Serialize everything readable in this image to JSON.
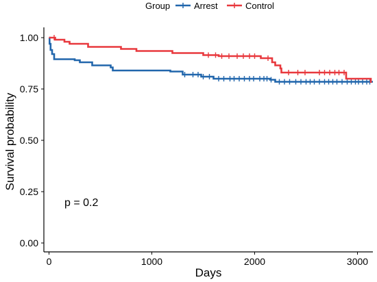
{
  "chart_data": {
    "type": "line",
    "subtype": "kaplan-meier step",
    "title": "",
    "xlabel": "Days",
    "ylabel": "Survival probability",
    "xlim": [
      -50,
      3150
    ],
    "ylim": [
      0,
      1.0
    ],
    "xticks": [
      0,
      1000,
      2000,
      3000
    ],
    "xtick_labels": [
      "0",
      "1000",
      "2000",
      "3000"
    ],
    "yticks": [
      0,
      0.25,
      0.5,
      0.75,
      1.0
    ],
    "ytick_labels": [
      "0.00",
      "0.25",
      "0.50",
      "0.75",
      "1.00"
    ],
    "grid": false,
    "legend": {
      "title": "Group",
      "placement": "top"
    },
    "annotation": "p = 0.2",
    "series": [
      {
        "name": "Arrest",
        "color": "#2166ac",
        "steps": [
          [
            0,
            1.0
          ],
          [
            5,
            0.97
          ],
          [
            15,
            0.94
          ],
          [
            30,
            0.92
          ],
          [
            50,
            0.895
          ],
          [
            250,
            0.89
          ],
          [
            300,
            0.88
          ],
          [
            420,
            0.865
          ],
          [
            600,
            0.855
          ],
          [
            620,
            0.84
          ],
          [
            1180,
            0.835
          ],
          [
            1300,
            0.82
          ],
          [
            1480,
            0.81
          ],
          [
            1600,
            0.8
          ],
          [
            2150,
            0.795
          ],
          [
            2200,
            0.785
          ],
          [
            3150,
            0.785
          ]
        ],
        "censored": [
          1320,
          1400,
          1450,
          1500,
          1560,
          1650,
          1700,
          1760,
          1800,
          1850,
          1900,
          1950,
          1990,
          2050,
          2090,
          2120,
          2160,
          2240,
          2290,
          2340,
          2400,
          2450,
          2500,
          2540,
          2580,
          2630,
          2680,
          2720,
          2760,
          2800,
          2850,
          2900,
          2940,
          2980,
          3010,
          3050,
          3090,
          3120
        ]
      },
      {
        "name": "Control",
        "color": "#e8383d",
        "steps": [
          [
            0,
            1.0
          ],
          [
            60,
            0.99
          ],
          [
            150,
            0.98
          ],
          [
            200,
            0.97
          ],
          [
            380,
            0.955
          ],
          [
            700,
            0.945
          ],
          [
            850,
            0.935
          ],
          [
            1200,
            0.925
          ],
          [
            1500,
            0.915
          ],
          [
            1650,
            0.91
          ],
          [
            2060,
            0.9
          ],
          [
            2170,
            0.88
          ],
          [
            2200,
            0.865
          ],
          [
            2250,
            0.85
          ],
          [
            2260,
            0.83
          ],
          [
            2890,
            0.8
          ],
          [
            3130,
            0.78
          ]
        ],
        "censored": [
          50,
          1550,
          1620,
          1680,
          1750,
          1830,
          1890,
          1950,
          2000,
          2130,
          2330,
          2420,
          2490,
          2630,
          2680,
          2730,
          2780,
          2820,
          2870
        ]
      }
    ]
  }
}
